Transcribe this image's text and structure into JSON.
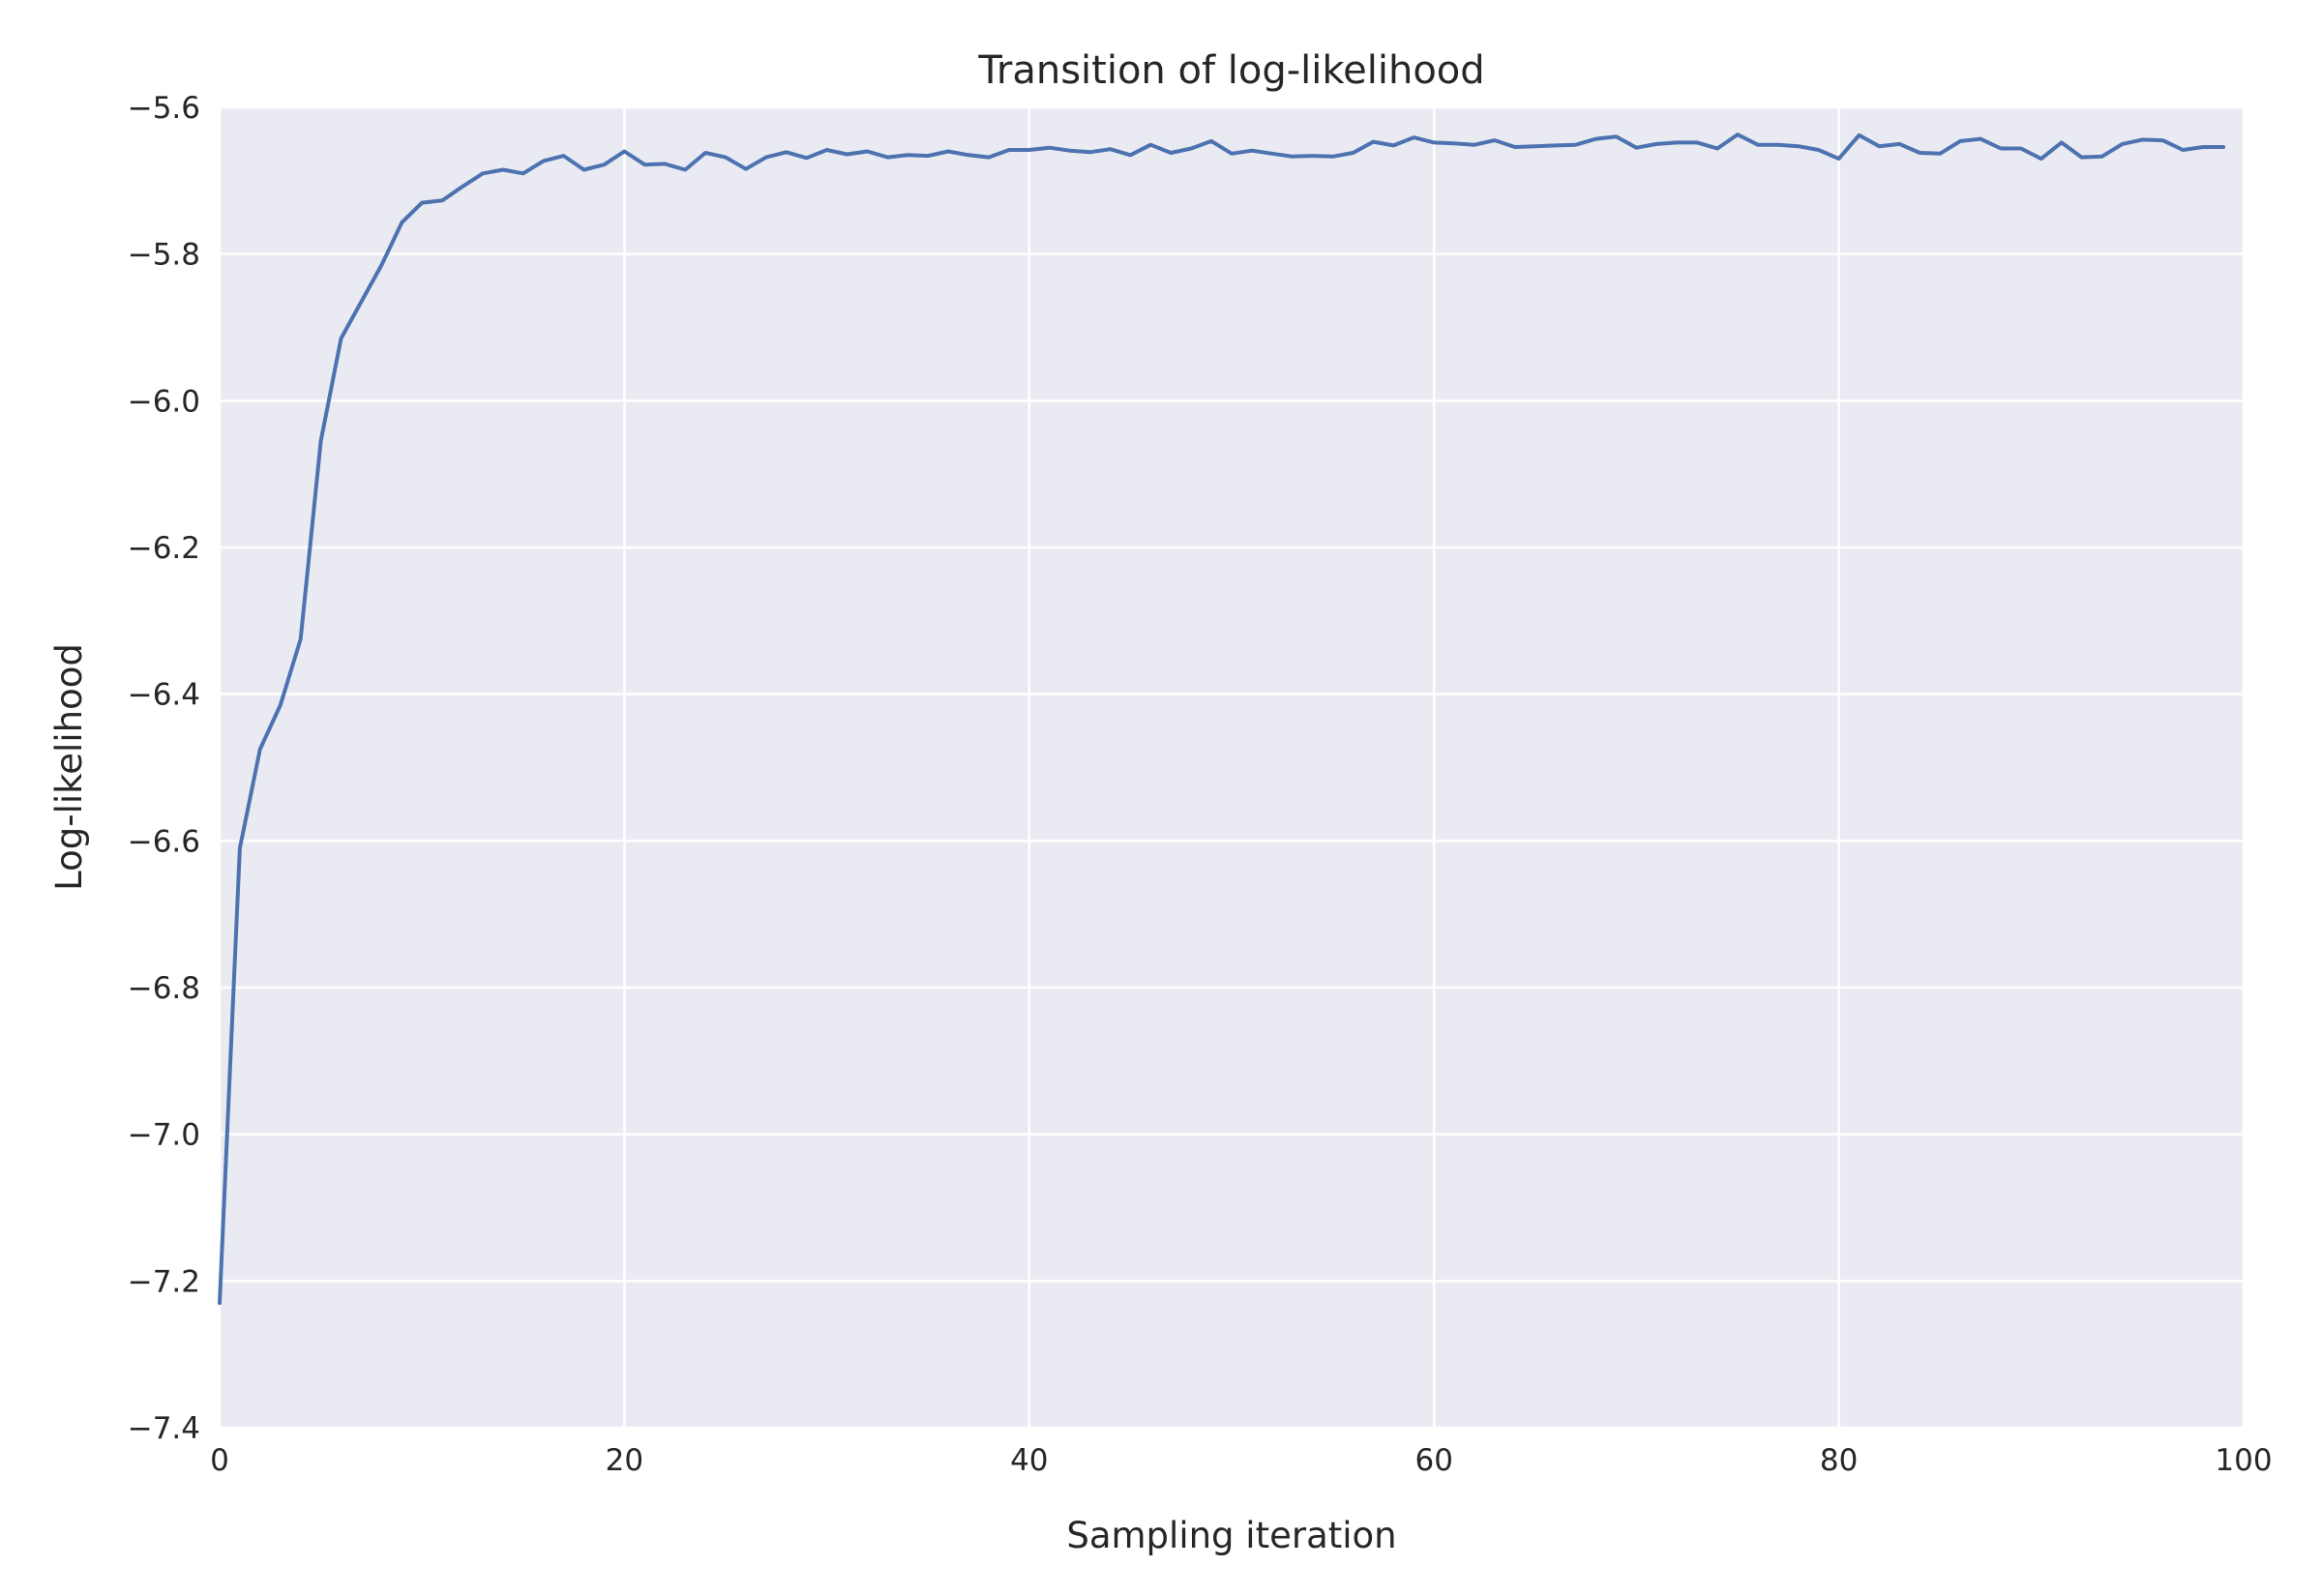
{
  "chart_data": {
    "type": "line",
    "title": "Transition of log-likelihood",
    "xlabel": "Sampling iteration",
    "ylabel": "Log-likelihood",
    "xlim": [
      0,
      100
    ],
    "ylim": [
      -7.4,
      -5.6
    ],
    "xticks": [
      0,
      20,
      40,
      60,
      80,
      100
    ],
    "xtick_labels": [
      "0",
      "20",
      "40",
      "60",
      "80",
      "100"
    ],
    "yticks": [
      -5.6,
      -5.8,
      -6.0,
      -6.2,
      -6.4,
      -6.6,
      -6.8,
      -7.0,
      -7.2,
      -7.4
    ],
    "ytick_labels": [
      "−5.6",
      "−5.8",
      "−6.0",
      "−6.2",
      "−6.4",
      "−6.6",
      "−6.8",
      "−7.0",
      "−7.2",
      "−7.4"
    ],
    "grid": true,
    "legend": "none",
    "colors": {
      "plot_background": "#EAEAF2",
      "grid": "#FFFFFF",
      "line": "#4C72B0",
      "text": "#262626"
    },
    "series": [
      {
        "x": [
          0,
          1,
          2,
          3,
          4,
          5,
          6,
          7,
          8,
          9,
          10,
          11,
          12,
          13,
          14,
          15,
          16,
          17,
          18,
          19,
          20,
          21,
          22,
          23,
          24,
          25,
          26,
          27,
          28,
          29,
          30,
          31,
          32,
          33,
          34,
          35,
          36,
          37,
          38,
          39,
          40,
          41,
          42,
          43,
          44,
          45,
          46,
          47,
          48,
          49,
          50,
          51,
          52,
          53,
          54,
          55,
          56,
          57,
          58,
          59,
          60,
          61,
          62,
          63,
          64,
          65,
          66,
          67,
          68,
          69,
          70,
          71,
          72,
          73,
          74,
          75,
          76,
          77,
          78,
          79,
          80,
          81,
          82,
          83,
          84,
          85,
          86,
          87,
          88,
          89,
          90,
          91,
          92,
          93,
          94,
          95,
          96,
          97,
          98,
          99
        ],
        "y": [
          -7.23,
          -6.61,
          -6.475,
          -6.415,
          -6.325,
          -6.055,
          -5.915,
          -5.865,
          -5.815,
          -5.757,
          -5.73,
          -5.727,
          -5.708,
          -5.69,
          -5.685,
          -5.69,
          -5.673,
          -5.666,
          -5.685,
          -5.678,
          -5.66,
          -5.678,
          -5.677,
          -5.685,
          -5.662,
          -5.668,
          -5.684,
          -5.668,
          -5.661,
          -5.669,
          -5.658,
          -5.664,
          -5.66,
          -5.668,
          -5.665,
          -5.666,
          -5.66,
          -5.665,
          -5.668,
          -5.658,
          -5.658,
          -5.655,
          -5.659,
          -5.661,
          -5.657,
          -5.665,
          -5.651,
          -5.662,
          -5.656,
          -5.646,
          -5.663,
          -5.659,
          -5.663,
          -5.667,
          -5.666,
          -5.667,
          -5.662,
          -5.647,
          -5.652,
          -5.641,
          -5.648,
          -5.649,
          -5.651,
          -5.645,
          -5.654,
          -5.653,
          -5.652,
          -5.651,
          -5.643,
          -5.64,
          -5.655,
          -5.65,
          -5.648,
          -5.648,
          -5.656,
          -5.637,
          -5.651,
          -5.651,
          -5.653,
          -5.658,
          -5.67,
          -5.638,
          -5.653,
          -5.65,
          -5.662,
          -5.663,
          -5.646,
          -5.643,
          -5.656,
          -5.656,
          -5.67,
          -5.648,
          -5.668,
          -5.667,
          -5.65,
          -5.644,
          -5.645,
          -5.658,
          -5.654,
          -5.654
        ]
      }
    ]
  }
}
